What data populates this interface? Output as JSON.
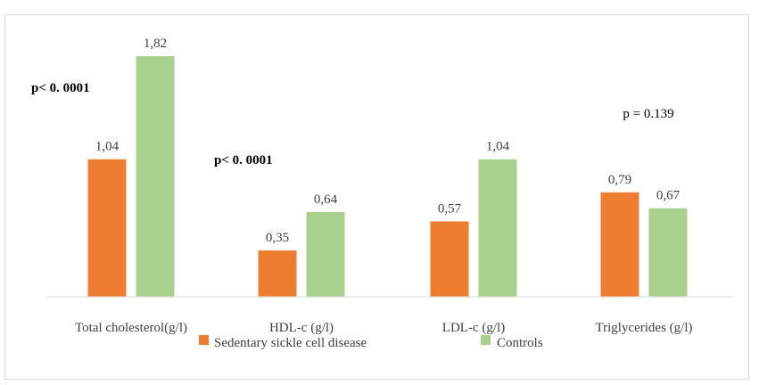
{
  "chart_data": {
    "type": "bar",
    "title": "",
    "xlabel": "",
    "ylabel": "",
    "ylim": [
      0,
      2.0
    ],
    "grid": false,
    "categories": [
      "Total cholesterol(g/l)",
      "HDL-c (g/l)",
      "LDL-c (g/l)",
      "Triglycerides (g/l)"
    ],
    "series": [
      {
        "name": "Sedentary sickle cell disease",
        "color": "#ed7d31",
        "values": [
          1.04,
          0.35,
          0.57,
          0.79
        ],
        "labels": [
          "1,04",
          "0,35",
          "0,57",
          "0,79"
        ]
      },
      {
        "name": "Controls",
        "color": "#a9d18e",
        "values": [
          1.82,
          0.64,
          1.04,
          0.67
        ],
        "labels": [
          "1,82",
          "0,64",
          "1,04",
          "0,67"
        ]
      }
    ],
    "annotations": [
      {
        "text": "p<  0. 0001",
        "category": 0,
        "bold": true
      },
      {
        "text": "p<  0. 0001",
        "category": 1,
        "bold": true
      },
      {
        "text": "p = 0.139",
        "category": 3,
        "bold": false
      }
    ],
    "legend": {
      "placement": "bottom",
      "entries": [
        "Sedentary sickle cell disease",
        "Controls"
      ]
    }
  }
}
